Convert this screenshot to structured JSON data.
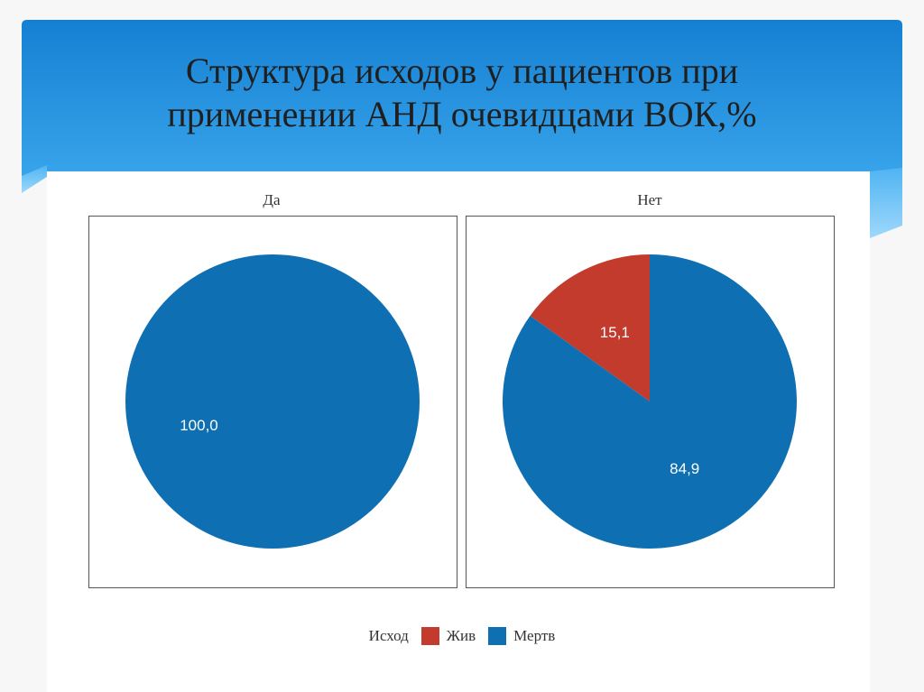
{
  "slide": {
    "title_line1": "Структура исходов у пациентов при",
    "title_line2": "применении АНД очевидцами ВОК,%"
  },
  "colors": {
    "header_blue": "#1e88d8",
    "header_light": "#6ec4f5",
    "alive": "#c23b2c",
    "dead": "#0f6fb3"
  },
  "chart_data": {
    "type": "pie",
    "unit": "%",
    "facets": [
      {
        "label": "Да",
        "slices": [
          {
            "category": "Мертв",
            "value": 100.0,
            "label": "100,0"
          }
        ]
      },
      {
        "label": "Нет",
        "slices": [
          {
            "category": "Жив",
            "value": 15.1,
            "label": "15,1"
          },
          {
            "category": "Мертв",
            "value": 84.9,
            "label": "84,9"
          }
        ]
      }
    ],
    "legend": {
      "title": "Исход",
      "placement": "bottom",
      "entries": [
        {
          "name": "Жив",
          "color": "#c23b2c"
        },
        {
          "name": "Мертв",
          "color": "#0f6fb3"
        }
      ]
    }
  }
}
